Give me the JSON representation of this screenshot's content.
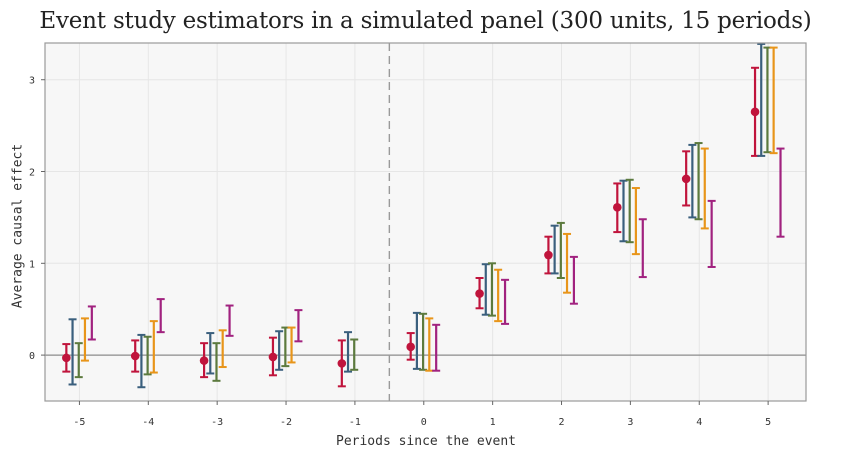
{
  "chart_data": {
    "type": "scatter",
    "title": "Event study estimators in a simulated panel (300 units, 15 periods)",
    "xlabel": "Periods since the event",
    "ylabel": "Average causal effect",
    "xlim": [
      -5.5,
      5.55
    ],
    "ylim": [
      -0.5,
      3.4
    ],
    "x_ticks": [
      -5,
      -4,
      -3,
      -2,
      -1,
      0,
      1,
      2,
      3,
      4,
      5
    ],
    "y_ticks": [
      0,
      1,
      2,
      3
    ],
    "grid": true,
    "reference_lines": {
      "horizontal_y": 0,
      "vertical_x": -0.5
    },
    "colors": [
      "#c0143c",
      "#3a5f7d",
      "#5c7a3e",
      "#e8951a",
      "#a1227f"
    ],
    "series": [
      {
        "marker": "point",
        "x": [
          -5,
          -4,
          -3,
          -2,
          -1,
          0,
          1,
          2,
          3,
          4,
          5
        ],
        "estimate": [
          -0.03,
          -0.01,
          -0.06,
          -0.02,
          -0.09,
          0.09,
          0.67,
          1.09,
          1.61,
          1.92,
          2.65
        ],
        "lower": [
          -0.18,
          -0.18,
          -0.24,
          -0.22,
          -0.34,
          -0.05,
          0.51,
          0.89,
          1.34,
          1.63,
          2.17
        ],
        "upper": [
          0.12,
          0.16,
          0.13,
          0.19,
          0.16,
          0.24,
          0.84,
          1.29,
          1.87,
          2.22,
          3.13
        ]
      },
      {
        "marker": "none",
        "x": [
          -5,
          -4,
          -3,
          -2,
          -1,
          0,
          1,
          2,
          3,
          4,
          5
        ],
        "lower": [
          -0.32,
          -0.35,
          -0.2,
          -0.16,
          -0.18,
          -0.15,
          0.44,
          0.89,
          1.24,
          1.5,
          2.17
        ],
        "upper": [
          0.39,
          0.22,
          0.24,
          0.26,
          0.25,
          0.46,
          0.99,
          1.41,
          1.9,
          2.29,
          3.39
        ]
      },
      {
        "marker": "none",
        "x": [
          -5,
          -4,
          -3,
          -2,
          -1,
          0,
          1,
          2,
          3,
          4,
          5
        ],
        "lower": [
          -0.24,
          -0.21,
          -0.28,
          -0.12,
          -0.16,
          -0.16,
          0.43,
          0.84,
          1.23,
          1.48,
          2.21
        ],
        "upper": [
          0.13,
          0.2,
          0.13,
          0.3,
          0.17,
          0.45,
          1.0,
          1.44,
          1.91,
          2.31,
          3.35
        ]
      },
      {
        "marker": "none",
        "x": [
          -5,
          -4,
          -3,
          -2,
          -1,
          0,
          1,
          2,
          3,
          4,
          5
        ],
        "lower": [
          -0.06,
          -0.19,
          -0.13,
          -0.08,
          null,
          -0.17,
          0.37,
          0.68,
          1.1,
          1.38,
          2.2
        ],
        "upper": [
          0.4,
          0.37,
          0.27,
          0.3,
          null,
          0.4,
          0.93,
          1.32,
          1.82,
          2.25,
          3.35
        ]
      },
      {
        "marker": "none",
        "x": [
          -5,
          -4,
          -3,
          -2,
          -1,
          0,
          1,
          2,
          3,
          4,
          5
        ],
        "lower": [
          0.17,
          0.25,
          0.21,
          0.15,
          null,
          -0.17,
          0.34,
          0.56,
          0.85,
          0.96,
          1.29
        ],
        "upper": [
          0.53,
          0.61,
          0.54,
          0.49,
          null,
          0.33,
          0.82,
          1.07,
          1.48,
          1.68,
          2.25
        ]
      }
    ]
  }
}
